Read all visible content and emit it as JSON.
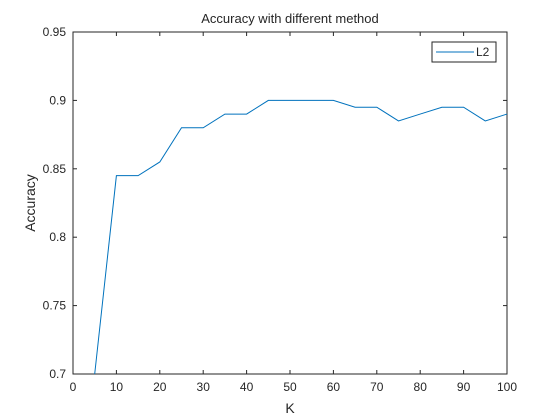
{
  "chart_data": {
    "type": "line",
    "title": "Accuracy with different method",
    "xlabel": "K",
    "ylabel": "Accuracy",
    "xlim": [
      0,
      100
    ],
    "ylim": [
      0.7,
      0.95
    ],
    "xticks": [
      "0",
      "10",
      "20",
      "30",
      "40",
      "50",
      "60",
      "70",
      "80",
      "90",
      "100"
    ],
    "yticks": [
      "0.7",
      "0.75",
      "0.8",
      "0.85",
      "0.9",
      "0.95"
    ],
    "grid": false,
    "legend_position": "top-right",
    "series": [
      {
        "name": "L2",
        "color": "#0072BD",
        "x": [
          5,
          10,
          15,
          20,
          25,
          30,
          35,
          40,
          45,
          50,
          55,
          60,
          65,
          70,
          75,
          80,
          85,
          90,
          95,
          100
        ],
        "y": [
          0.7,
          0.845,
          0.845,
          0.855,
          0.88,
          0.88,
          0.89,
          0.89,
          0.9,
          0.9,
          0.9,
          0.9,
          0.895,
          0.895,
          0.885,
          0.89,
          0.895,
          0.895,
          0.885,
          0.89
        ]
      }
    ]
  }
}
